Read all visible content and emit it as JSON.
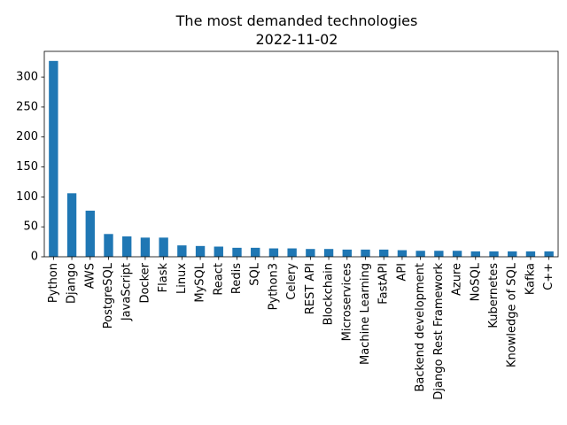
{
  "chart_data": {
    "type": "bar",
    "title": "The most demanded technologies",
    "subtitle": "2022-11-02",
    "xlabel": "",
    "ylabel": "",
    "ylim": [
      0,
      343
    ],
    "yticks": [
      0,
      50,
      100,
      150,
      200,
      250,
      300
    ],
    "grid": false,
    "legend": "none",
    "bar_color": "#1f77b4",
    "categories": [
      "Python",
      "Django",
      "AWS",
      "PostgreSQL",
      "JavaScript",
      "Docker",
      "Flask",
      "Linux",
      "MySQL",
      "React",
      "Redis",
      "SQL",
      "Python3",
      "Celery",
      "REST API",
      "Blockchain",
      "Microservices",
      "Machine Learning",
      "FastAPI",
      "API",
      "Backend development",
      "Django Rest Framework",
      "Azure",
      "NoSQL",
      "Kubernetes",
      "Knowledge of SQL",
      "Kafka",
      "C++"
    ],
    "values": [
      327,
      106,
      77,
      38,
      34,
      32,
      32,
      19,
      18,
      17,
      15,
      15,
      14,
      14,
      13,
      13,
      12,
      12,
      12,
      11,
      10,
      10,
      10,
      9,
      9,
      9,
      9,
      9
    ]
  }
}
